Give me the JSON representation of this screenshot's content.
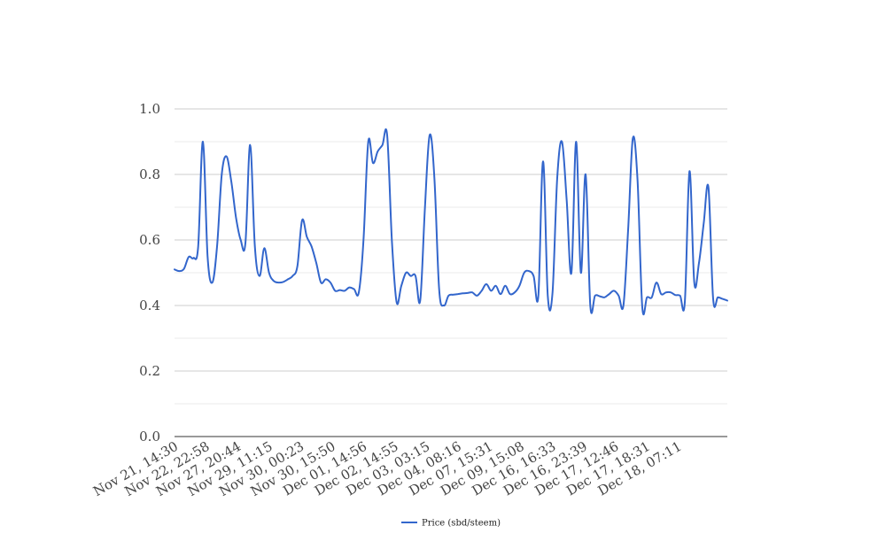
{
  "chart_data": {
    "type": "line",
    "title": "",
    "xlabel": "",
    "ylabel": "",
    "ylim": [
      0,
      1
    ],
    "y_ticks": [
      "0.0",
      "0.2",
      "0.4",
      "0.6",
      "0.8",
      "1.0"
    ],
    "x_tick_labels": [
      "Nov 21, 14:30",
      "Nov 22, 22:58",
      "Nov 27, 20:44",
      "Nov 29, 11:15",
      "Nov 30, 00:23",
      "Nov 30, 15:50",
      "Dec 01, 14:56",
      "Dec 02, 14:55",
      "Dec 03, 03:15",
      "Dec 04, 08:16",
      "Dec 07, 15:31",
      "Dec 09, 15:08",
      "Dec 16, 16:33",
      "Dec 16, 23:39",
      "Dec 17, 12:46",
      "Dec 17, 18:31",
      "Dec 18, 07:11"
    ],
    "grid": true,
    "legend_position": "bottom",
    "series": [
      {
        "name": "Price (sbd/steem)",
        "color": "#3366cc",
        "values": [
          0.51,
          0.505,
          0.512,
          0.548,
          0.545,
          0.58,
          0.9,
          0.55,
          0.47,
          0.58,
          0.8,
          0.855,
          0.78,
          0.67,
          0.6,
          0.59,
          0.89,
          0.58,
          0.49,
          0.575,
          0.5,
          0.475,
          0.47,
          0.472,
          0.48,
          0.49,
          0.52,
          0.66,
          0.61,
          0.58,
          0.53,
          0.47,
          0.48,
          0.47,
          0.445,
          0.447,
          0.445,
          0.455,
          0.45,
          0.44,
          0.6,
          0.9,
          0.835,
          0.87,
          0.89,
          0.92,
          0.6,
          0.41,
          0.46,
          0.5,
          0.49,
          0.49,
          0.415,
          0.7,
          0.92,
          0.79,
          0.45,
          0.4,
          0.43,
          0.433,
          0.435,
          0.437,
          0.438,
          0.44,
          0.43,
          0.445,
          0.465,
          0.445,
          0.46,
          0.435,
          0.46,
          0.435,
          0.44,
          0.46,
          0.5,
          0.505,
          0.49,
          0.43,
          0.84,
          0.43,
          0.44,
          0.79,
          0.9,
          0.72,
          0.5,
          0.9,
          0.5,
          0.8,
          0.4,
          0.43,
          0.428,
          0.425,
          0.435,
          0.445,
          0.43,
          0.4,
          0.63,
          0.91,
          0.78,
          0.395,
          0.425,
          0.425,
          0.47,
          0.435,
          0.44,
          0.44,
          0.432,
          0.43,
          0.41,
          0.81,
          0.47,
          0.53,
          0.65,
          0.76,
          0.42,
          0.425,
          0.42,
          0.415
        ]
      }
    ]
  }
}
